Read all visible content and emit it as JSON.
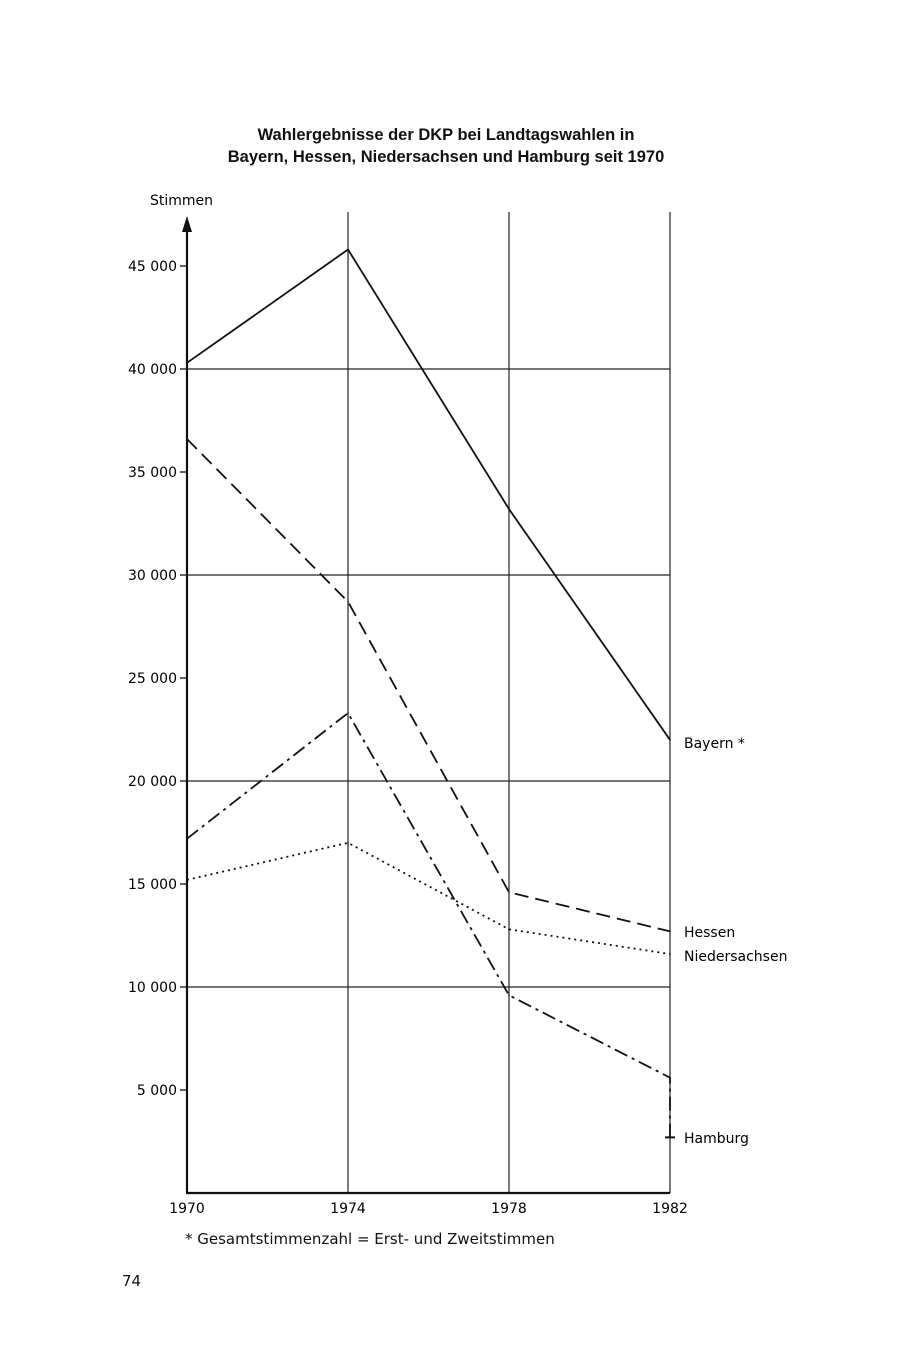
{
  "chart_data": {
    "type": "line",
    "title": "Wahlergebnisse der DKP bei Landtagswahlen in",
    "subtitle": "Bayern, Hessen, Niedersachsen und Hamburg seit 1970",
    "ylabel": "Stimmen",
    "xlabel": "",
    "x_ticks": [
      "1970",
      "1974",
      "1978",
      "1982"
    ],
    "y_ticks": [
      "5 000",
      "10 000",
      "15 000",
      "20 000",
      "25 000",
      "30 000",
      "35 000",
      "40 000",
      "45 000"
    ],
    "y_tick_values": [
      5000,
      10000,
      15000,
      20000,
      25000,
      30000,
      35000,
      40000,
      45000
    ],
    "xlim": [
      1970,
      1982
    ],
    "ylim": [
      0,
      47000
    ],
    "grid": "horizontal lines at 10 000 steps, vertical lines at 1974, 1978, 1982",
    "legend": "labels at right end of lines",
    "series": [
      {
        "name": "Bayern *",
        "style": "solid",
        "x": [
          1970,
          1974,
          1978,
          1982
        ],
        "values": [
          40300,
          45800,
          33200,
          22000
        ]
      },
      {
        "name": "Hessen",
        "style": "dashed",
        "x": [
          1970,
          1974,
          1978,
          1982
        ],
        "values": [
          36600,
          28700,
          14600,
          12700
        ]
      },
      {
        "name": "Niedersachsen",
        "style": "dotted",
        "x": [
          1970,
          1974,
          1978,
          1982
        ],
        "values": [
          15200,
          17000,
          12800,
          11600
        ]
      },
      {
        "name": "Hamburg",
        "style": "dash-dot",
        "x": [
          1970,
          1974,
          1978,
          1982,
          1982
        ],
        "values": [
          17200,
          23300,
          9600,
          5600,
          2700
        ]
      }
    ],
    "footnote": "* Gesamtstimmenzahl = Erst- und Zweitstimmen"
  },
  "page_number": "74"
}
